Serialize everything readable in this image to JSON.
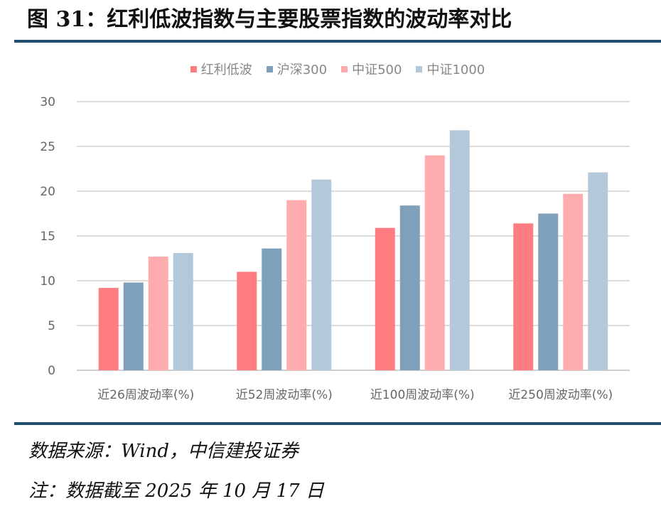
{
  "header": {
    "title": "图 31：红利低波指数与主要股票指数的波动率对比"
  },
  "chart_data": {
    "type": "bar",
    "categories": [
      "近26周波动率(%)",
      "近52周波动率(%)",
      "近100周波动率(%)",
      "近250周波动率(%)"
    ],
    "series": [
      {
        "name": "红利低波",
        "color": "#ff7c80",
        "values": [
          9.2,
          11.0,
          15.9,
          16.4
        ]
      },
      {
        "name": "沪深300",
        "color": "#7fa0bb",
        "values": [
          9.8,
          13.6,
          18.4,
          17.5
        ]
      },
      {
        "name": "中证500",
        "color": "#ffacaf",
        "values": [
          12.7,
          19.0,
          24.0,
          19.7
        ]
      },
      {
        "name": "中证1000",
        "color": "#b3c9da",
        "values": [
          13.1,
          21.3,
          26.8,
          22.1
        ]
      }
    ],
    "ylim": [
      0,
      30
    ],
    "yticks": [
      0,
      5,
      10,
      15,
      20,
      25,
      30
    ],
    "grid": true,
    "legend_position": "top"
  },
  "footer": {
    "source": "数据来源：Wind，中信建投证券",
    "note": "注：数据截至 2025 年 10 月 17 日"
  }
}
